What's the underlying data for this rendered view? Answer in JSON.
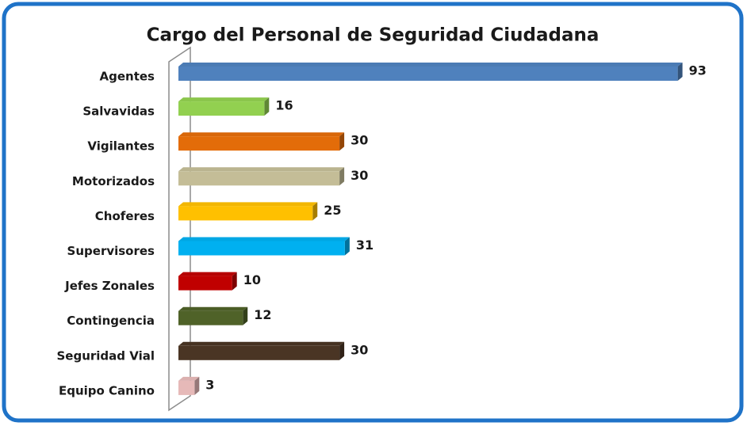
{
  "chart_data": {
    "type": "bar",
    "orientation": "horizontal",
    "title": "Cargo del Personal de Seguridad Ciudadana",
    "categories": [
      "Agentes",
      "Salvavidas",
      "Vigilantes",
      "Motorizados",
      "Choferes",
      "Supervisores",
      "Jefes Zonales",
      "Contingencia",
      "Seguridad Vial",
      "Equipo Canino"
    ],
    "values": [
      93,
      16,
      30,
      30,
      25,
      31,
      10,
      12,
      30,
      3
    ],
    "colors": [
      "#4f81bd",
      "#92d050",
      "#e36c09",
      "#c4bd97",
      "#ffc000",
      "#00b0f0",
      "#c00000",
      "#4f6228",
      "#4a3524",
      "#e6b9b8"
    ],
    "xlim": [
      0,
      100
    ]
  }
}
